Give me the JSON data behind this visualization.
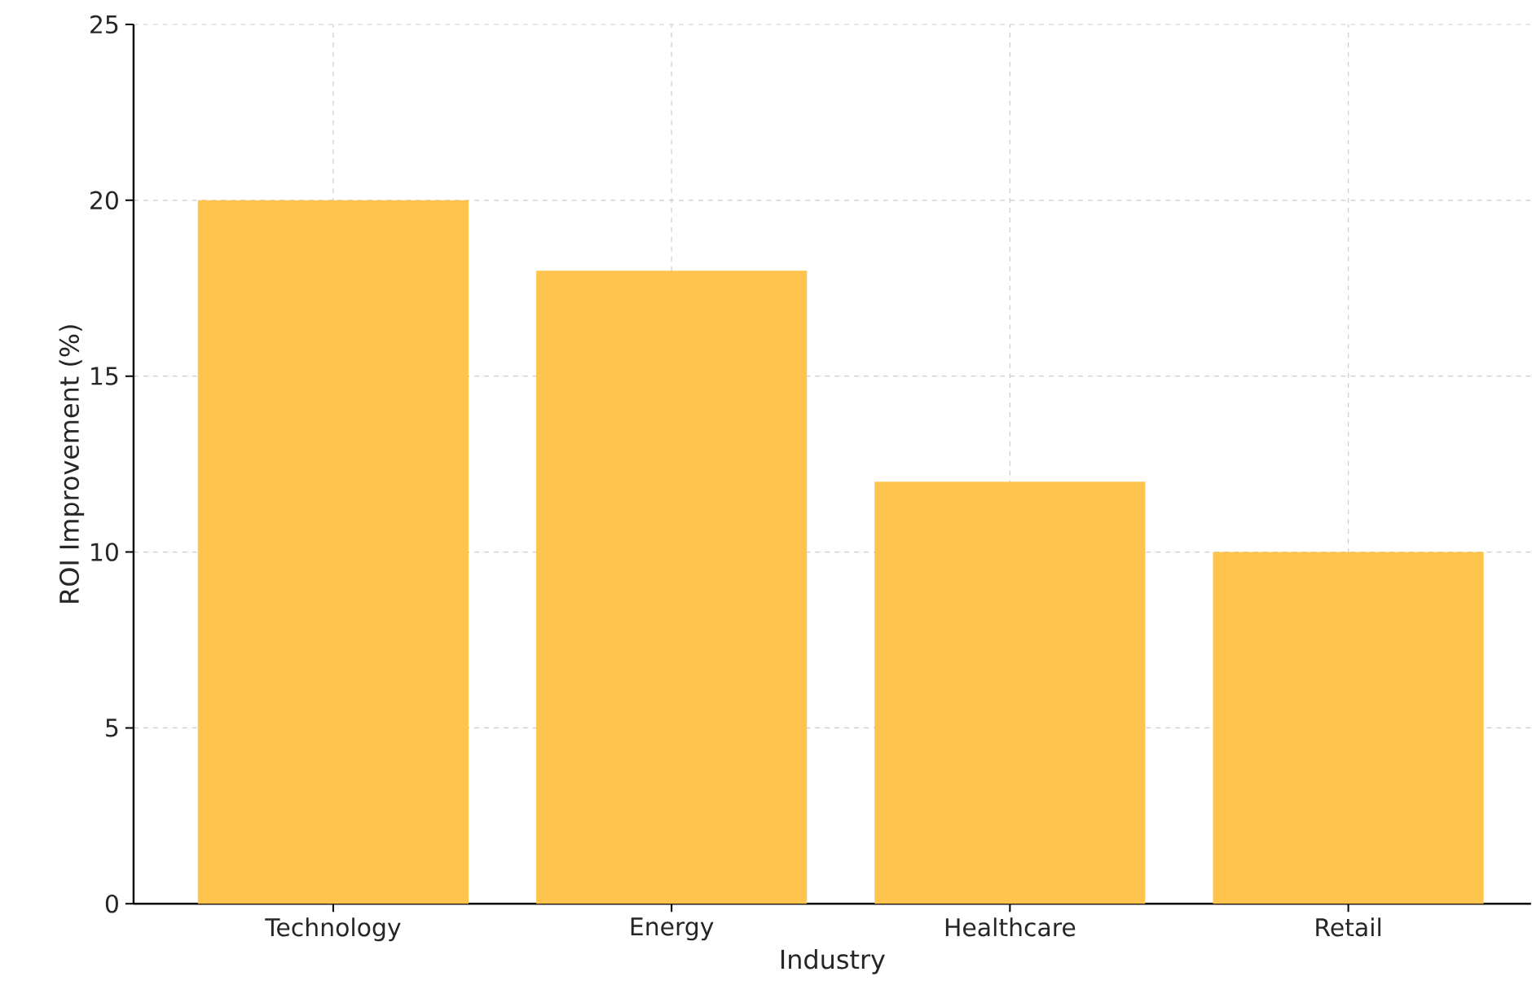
{
  "chart_data": {
    "type": "bar",
    "xlabel": "Industry",
    "ylabel": "ROI Improvement (%)",
    "categories": [
      "Technology",
      "Energy",
      "Healthcare",
      "Retail"
    ],
    "values": [
      20,
      18,
      12,
      10
    ],
    "color": "#ffc44d",
    "ylim": [
      0,
      25
    ],
    "yticks": [
      0,
      5,
      10,
      15,
      20,
      25
    ],
    "grid": true
  }
}
